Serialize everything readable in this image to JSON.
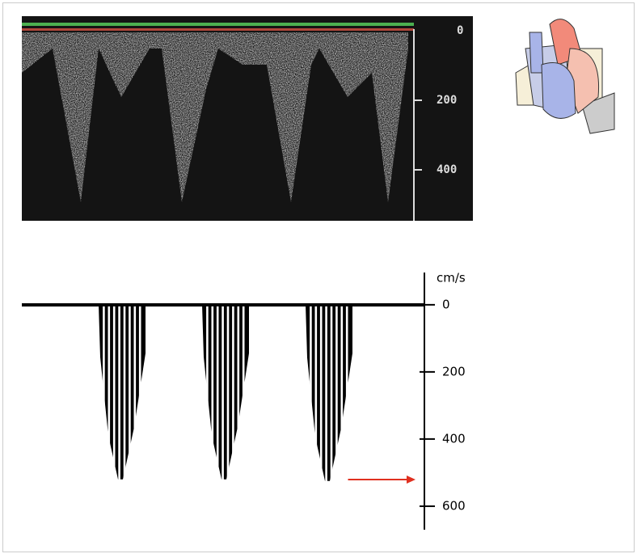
{
  "doppler_image": {
    "scale_labels": [
      "0",
      "200",
      "400"
    ]
  },
  "schematic": {
    "axis_label": "cm/s",
    "ylim": [
      -96,
      670
    ],
    "ticks": [
      0,
      200,
      400,
      600
    ],
    "peaks": [
      520,
      520,
      525
    ]
  }
}
